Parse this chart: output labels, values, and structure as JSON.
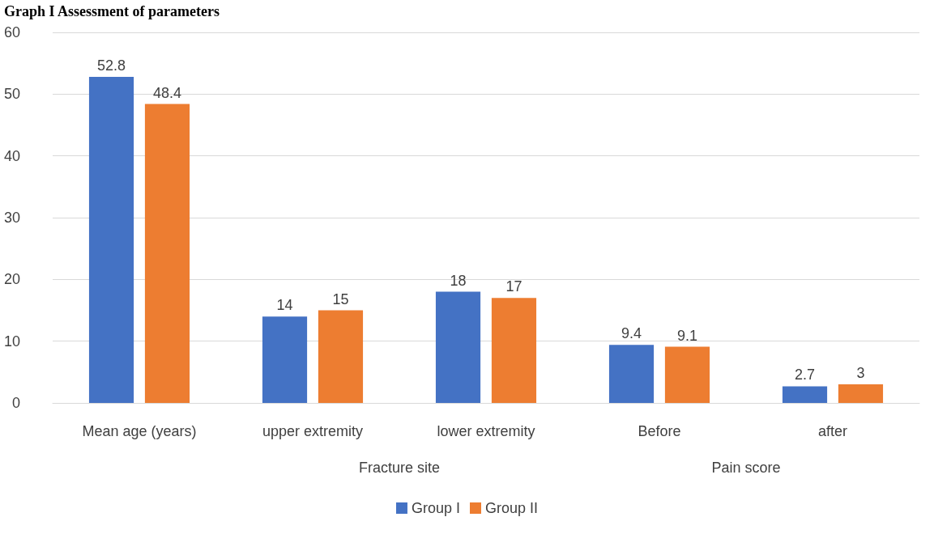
{
  "chart_data": {
    "type": "bar",
    "title": "Graph I Assessment of parameters",
    "categories": [
      "Mean age (years)",
      "upper extremity",
      "lower extremity",
      "Before",
      "after"
    ],
    "annotations": [
      "Fracture site",
      "Pain score"
    ],
    "series": [
      {
        "name": "Group I",
        "color": "#4472c4",
        "values": [
          52.8,
          14,
          18,
          9.4,
          2.7
        ]
      },
      {
        "name": "Group II",
        "color": "#ed7d31",
        "values": [
          48.4,
          15,
          17,
          9.1,
          3
        ]
      }
    ],
    "ylim": [
      0,
      60
    ],
    "yticks": [
      0,
      10,
      20,
      30,
      40,
      50,
      60
    ],
    "grid": true,
    "data_labels": true,
    "legend": "bottom"
  }
}
